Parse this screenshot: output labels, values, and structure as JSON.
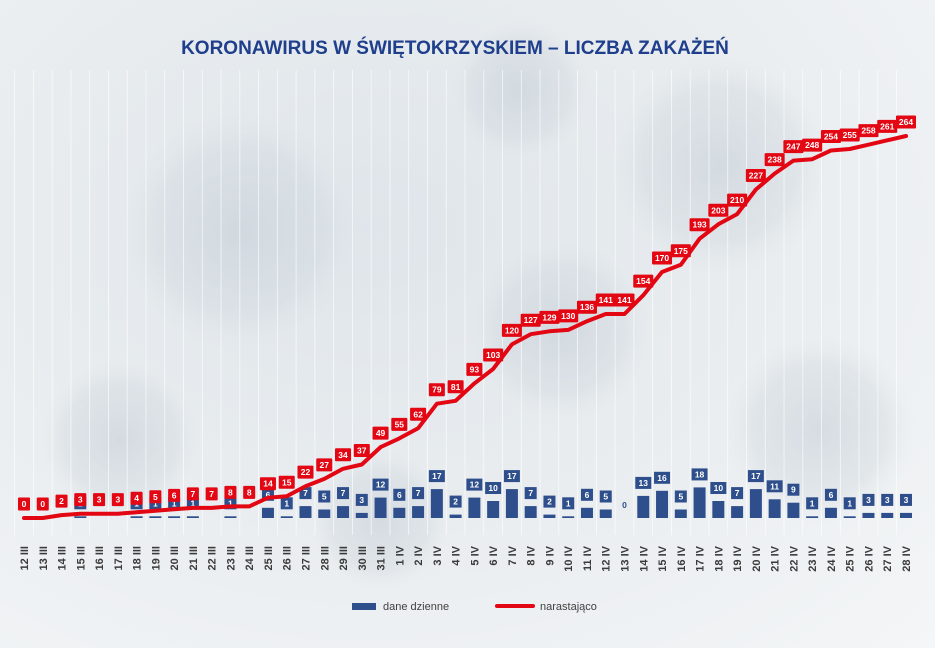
{
  "colors": {
    "title": "#1f3e8c",
    "daily": "#2e4f8c",
    "cumulative": "#e30613"
  },
  "chart_data": {
    "type": "bar+line",
    "title": "KORONAWIRUS W ŚWIĘTOKRZYSKIEM – LICZBA ZAKAŻEŃ",
    "categories": [
      "12 III",
      "13 III",
      "14 III",
      "15 III",
      "16 III",
      "17 III",
      "18 III",
      "19 III",
      "20 III",
      "21 III",
      "22 III",
      "23 III",
      "24 III",
      "25 III",
      "26 III",
      "27 III",
      "28 III",
      "29 III",
      "30 III",
      "31 III",
      "1 IV",
      "2 IV",
      "3 IV",
      "4 IV",
      "5 IV",
      "6 IV",
      "7 IV",
      "8 IV",
      "9 IV",
      "10 IV",
      "11 IV",
      "12 IV",
      "13 IV",
      "14 IV",
      "15 IV",
      "16 IV",
      "17 IV",
      "18 IV",
      "19 IV",
      "20 IV",
      "21 IV",
      "22 IV",
      "23 IV",
      "24 IV",
      "25 IV",
      "26 IV",
      "27 IV",
      "28 IV"
    ],
    "series": [
      {
        "name": "dane dzienne",
        "type": "bar",
        "color": "#2e4f8c",
        "values": [
          null,
          null,
          null,
          1,
          null,
          null,
          1,
          1,
          1,
          1,
          null,
          1,
          null,
          6,
          1,
          7,
          5,
          7,
          3,
          12,
          6,
          7,
          17,
          2,
          12,
          10,
          17,
          7,
          2,
          1,
          6,
          5,
          0,
          13,
          16,
          5,
          18,
          10,
          7,
          17,
          11,
          9,
          1,
          6,
          1,
          3,
          3,
          3
        ]
      },
      {
        "name": "narastająco",
        "type": "line",
        "color": "#e30613",
        "values": [
          0,
          0,
          2,
          3,
          3,
          3,
          4,
          5,
          6,
          7,
          7,
          8,
          8,
          14,
          15,
          22,
          27,
          34,
          37,
          49,
          55,
          62,
          79,
          81,
          93,
          103,
          120,
          127,
          129,
          130,
          136,
          141,
          141,
          154,
          170,
          175,
          193,
          203,
          210,
          227,
          238,
          247,
          248,
          254,
          255,
          258,
          261,
          264
        ]
      }
    ],
    "ylim": [
      0,
      264
    ],
    "grid": "vertical",
    "legend": "bottom"
  }
}
